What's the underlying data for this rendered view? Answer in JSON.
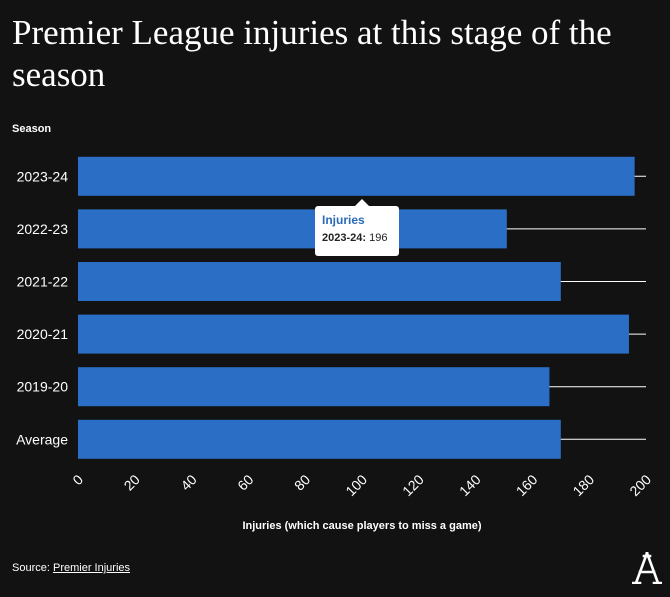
{
  "header": {
    "title": "Premier League injuries at this stage of the season"
  },
  "tooltip": {
    "title": "Injuries",
    "label": "2023-24:",
    "value": "196"
  },
  "footer": {
    "source_prefix": "Source:",
    "source_link": "Premier Injuries"
  },
  "logo": {
    "letter": "A"
  },
  "colors": {
    "background": "#121212",
    "bar": "#2a6ec6",
    "grid": "#ffffff",
    "text": "#ffffff",
    "tooltip_title": "#2a6ab8"
  },
  "chart_data": {
    "type": "bar",
    "orientation": "horizontal",
    "categories": [
      "2023-24",
      "2022-23",
      "2021-22",
      "2020-21",
      "2019-20",
      "Average"
    ],
    "series": [
      {
        "name": "Injuries",
        "values": [
          196,
          151,
          170,
          194,
          166,
          170
        ]
      }
    ],
    "xlabel": "Injuries (which cause players to miss a game)",
    "ylabel": "Season",
    "xlim": [
      0,
      200
    ],
    "xticks": [
      0,
      20,
      40,
      60,
      80,
      100,
      120,
      140,
      160,
      180,
      200
    ],
    "grid": "horizontal lines at category rows",
    "legend": "none"
  }
}
